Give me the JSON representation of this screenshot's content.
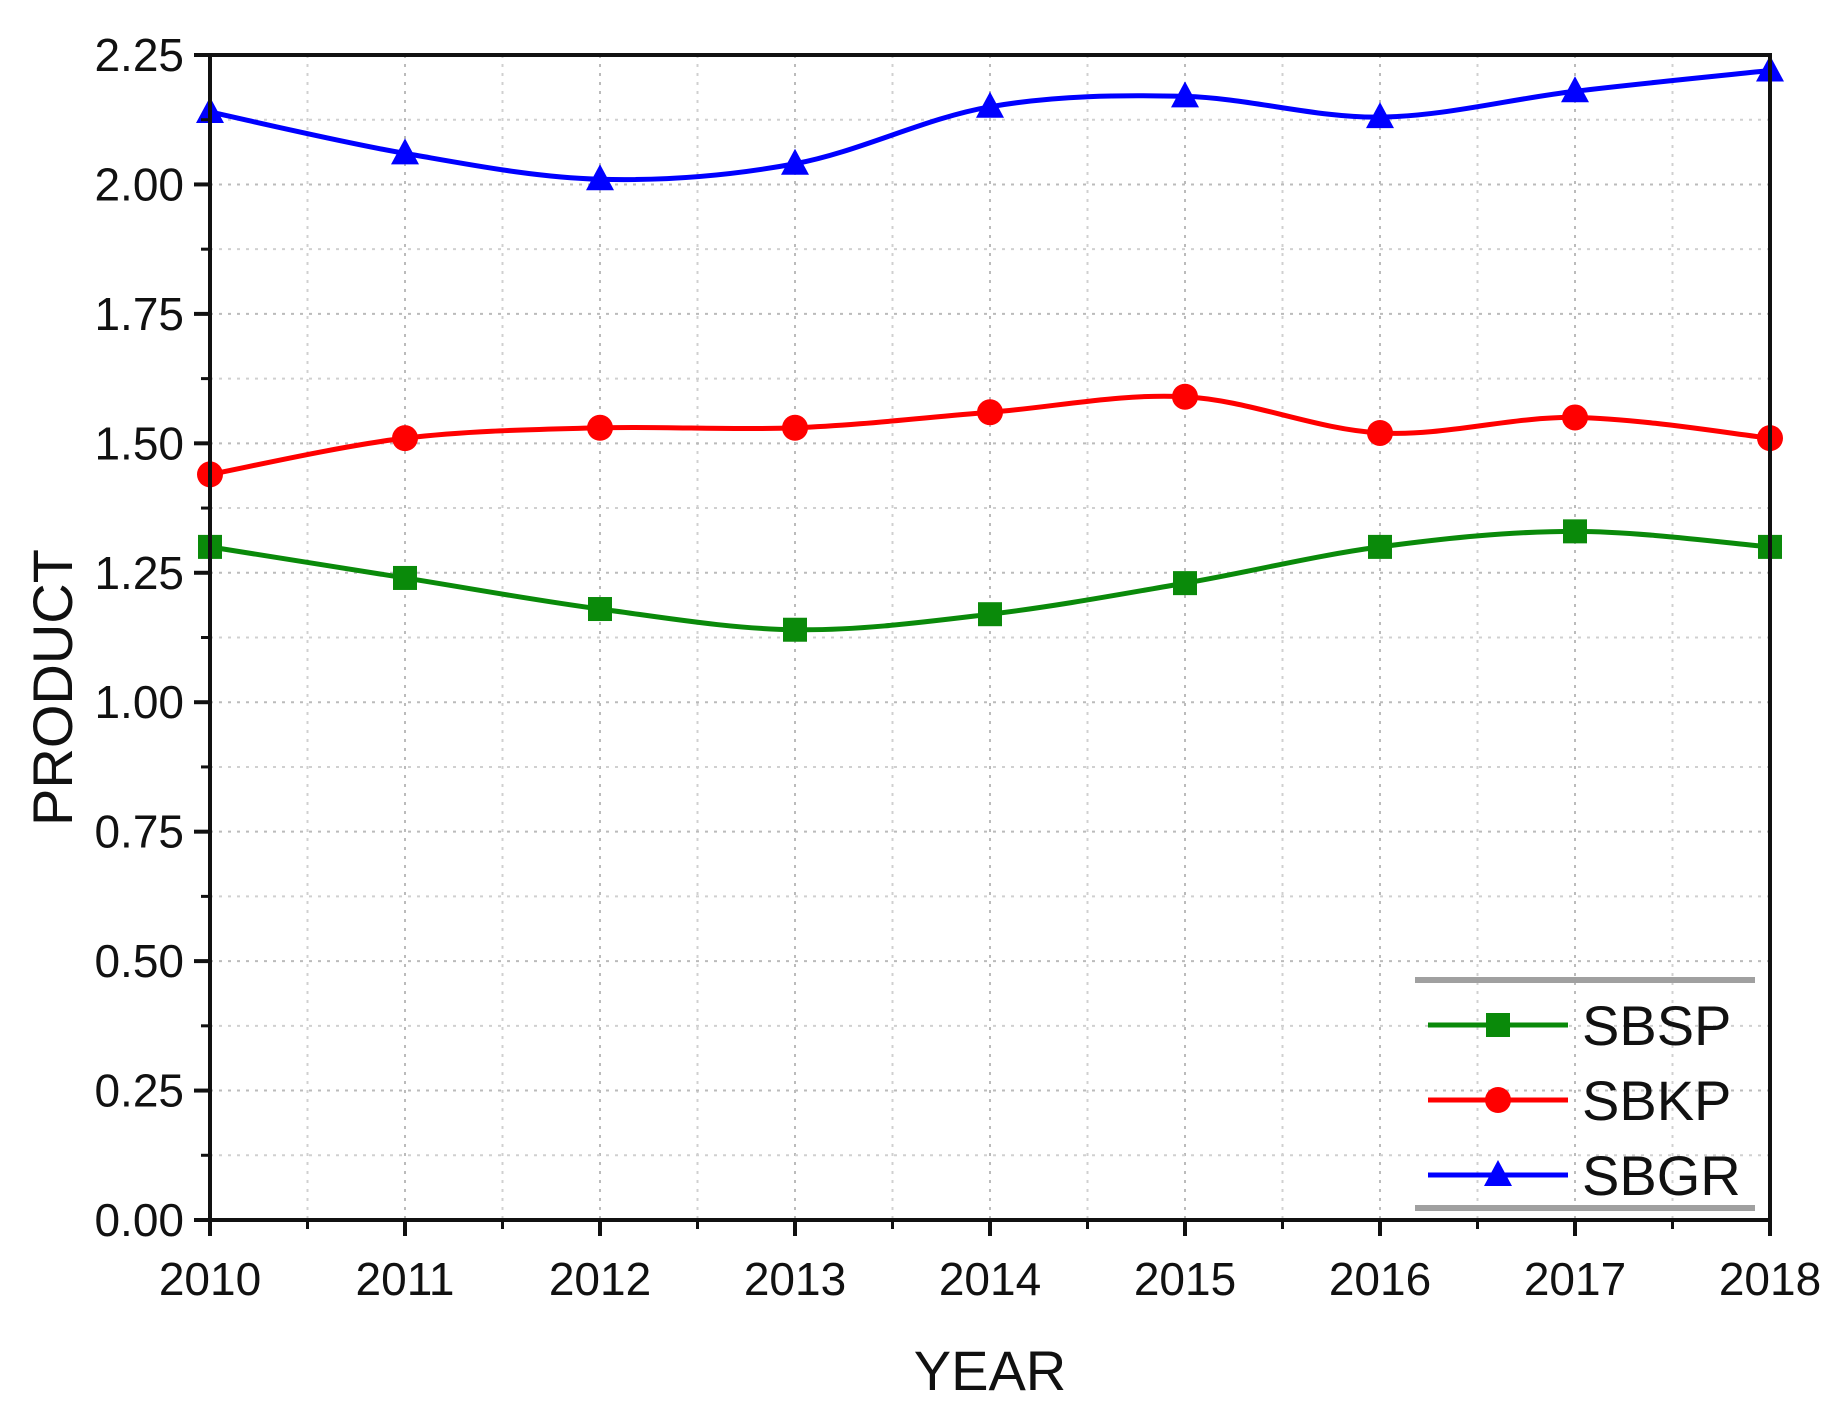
{
  "chart_data": {
    "type": "line",
    "title": "",
    "xlabel": "YEAR",
    "ylabel": "PRODUCT",
    "x": [
      2010,
      2011,
      2012,
      2013,
      2014,
      2015,
      2016,
      2017,
      2018
    ],
    "xlim": [
      2010,
      2018
    ],
    "ylim": [
      0,
      2.25
    ],
    "x_ticks": [
      "2010",
      "2011",
      "2012",
      "2013",
      "2014",
      "2015",
      "2016",
      "2017",
      "2018"
    ],
    "y_ticks": [
      "0.00",
      "0.25",
      "0.50",
      "0.75",
      "1.00",
      "1.25",
      "1.50",
      "1.75",
      "2.00",
      "2.25"
    ],
    "grid": true,
    "smooth_lines": true,
    "legend": {
      "position": "bottom-right"
    },
    "series": [
      {
        "name": "SBSP",
        "color": "#0a8a0a",
        "marker": "square",
        "values": [
          1.3,
          1.24,
          1.18,
          1.14,
          1.17,
          1.23,
          1.3,
          1.33,
          1.3
        ]
      },
      {
        "name": "SBKP",
        "color": "#ff0000",
        "marker": "circle",
        "values": [
          1.44,
          1.51,
          1.53,
          1.53,
          1.56,
          1.59,
          1.52,
          1.55,
          1.51
        ]
      },
      {
        "name": "SBGR",
        "color": "#0000ff",
        "marker": "triangle",
        "values": [
          2.14,
          2.06,
          2.01,
          2.04,
          2.15,
          2.17,
          2.13,
          2.18,
          2.22
        ]
      }
    ]
  }
}
